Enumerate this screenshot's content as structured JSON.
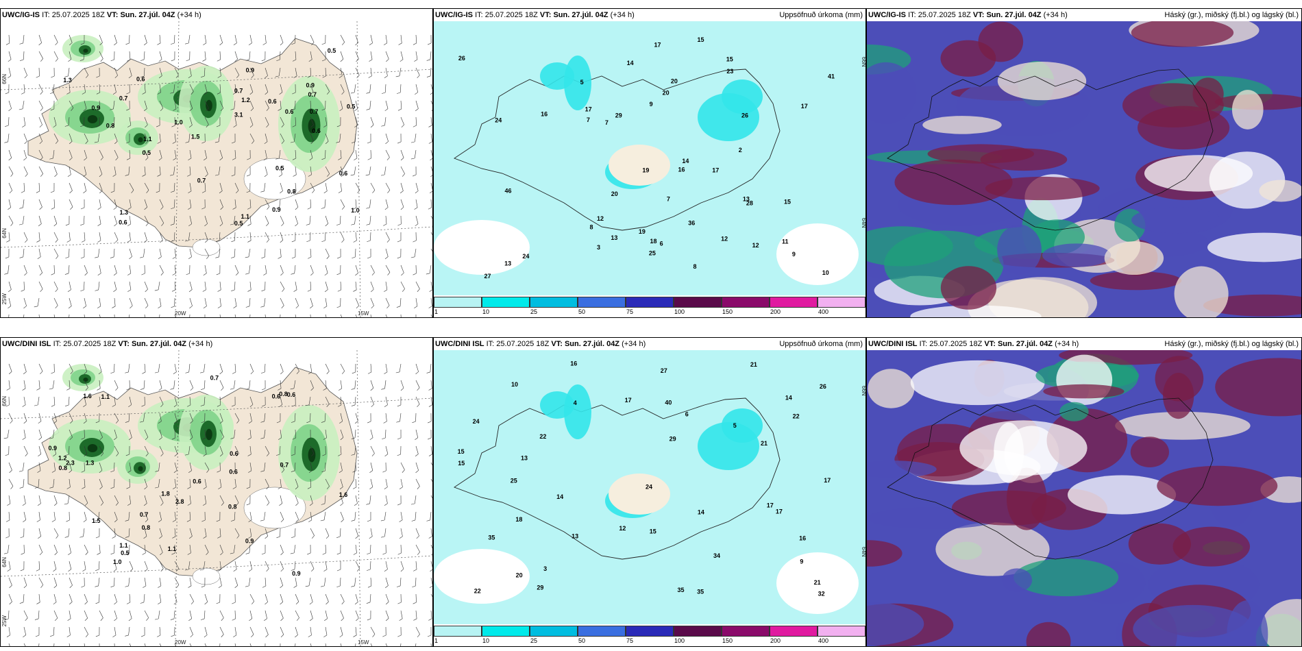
{
  "colors": {
    "land": "#f2e6d6",
    "ice": "#ffffff",
    "sea": "#ffffff",
    "precip_bg": "#b9f5f5",
    "green_light": "#c9f0c0",
    "green_mid": "#7fd38a",
    "green_dark": "#1d6b2a",
    "green_darkest": "#0b3a12",
    "cloud_high": "#7a1e45",
    "cloud_mid": "#4c4eb8",
    "cloud_low": "#1fa07a"
  },
  "panels": [
    {
      "model": "UWC/IG-IS",
      "init_label": "IT:",
      "init_time": "25.07.2025 18Z",
      "valid_label": "VT:",
      "valid_time": "Sun. 27.júl. 04Z",
      "lead": "(+34 h)",
      "right_title": "",
      "axis": {
        "lat1": "66N",
        "lat2": "64N",
        "lat3": "25W",
        "lon1": "20W",
        "lon2": "15W"
      },
      "values": [
        "1.0",
        "0.6",
        "0.5",
        "0.7",
        "0.6",
        "0.9",
        "0.8",
        "1.2",
        "0.7",
        "0.5",
        "0.9",
        "0.6",
        "1.1",
        "0.5",
        "0.6",
        "1.3",
        "1.0",
        "0.7",
        "0.6",
        "0.5",
        "0.7",
        "1.3",
        "3.1",
        "1.5",
        "1.1",
        "0.7",
        "0.6",
        "0.5",
        "0.8",
        "0.9",
        "0.9"
      ]
    },
    {
      "model": "UWC/IG-IS",
      "init_label": "IT:",
      "init_time": "25.07.2025 18Z",
      "valid_label": "VT:",
      "valid_time": "Sun. 27.júl. 04Z",
      "lead": "(+34 h)",
      "right_title": "Uppsöfnuð úrkoma (mm)",
      "axis": {
        "lat1": "66N",
        "lat2": "64N"
      },
      "values": [
        "13",
        "15",
        "14",
        "7",
        "14",
        "15",
        "11",
        "15",
        "12",
        "8",
        "10",
        "7",
        "13",
        "17",
        "12",
        "17",
        "13",
        "46",
        "19",
        "41",
        "26",
        "24",
        "25",
        "17",
        "28",
        "23",
        "29",
        "20",
        "17",
        "36",
        "9",
        "20",
        "20",
        "27",
        "16",
        "8",
        "18",
        "26",
        "24",
        "19",
        "16",
        "12",
        "5",
        "3",
        "2",
        "7",
        "9",
        "6"
      ]
    },
    {
      "model": "UWC/IG-IS",
      "init_label": "IT:",
      "init_time": "25.07.2025 18Z",
      "valid_label": "VT:",
      "valid_time": "Sun. 27.júl. 04Z",
      "lead": "(+34 h)",
      "right_title": "Háský (gr.), miðský (fj.bl.) og lágský (bl.)"
    },
    {
      "model": "UWC/DINI ISL",
      "init_label": "IT:",
      "init_time": "25.07.2025 18Z",
      "valid_label": "VT:",
      "valid_time": "Sun. 27.júl. 04Z",
      "lead": "(+34 h)",
      "right_title": "",
      "axis": {
        "lat1": "66N",
        "lat2": "64N",
        "lat3": "25W",
        "lon1": "20W",
        "lon2": "15W"
      },
      "values": [
        "0.7",
        "0.5",
        "1.2",
        "0.6",
        "0.8",
        "1.6",
        "1.3",
        "0.6",
        "0.7",
        "0.8",
        "1.1",
        "0.6",
        "0.6",
        "1.0",
        "0.9",
        "0.7",
        "0.8",
        "0.9",
        "0.9",
        "1.5",
        "0.8",
        "1.8",
        "0.6",
        "2.3",
        "1.1",
        "1.6",
        "2.8",
        "1.1"
      ]
    },
    {
      "model": "UWC/DINI ISL",
      "init_label": "IT:",
      "init_time": "25.07.2025 18Z",
      "valid_label": "VT:",
      "valid_time": "Sun. 27.júl. 04Z",
      "lead": "(+34 h)",
      "right_title": "Uppsöfnuð úrkoma (mm)",
      "axis": {
        "lat1": "66N",
        "lat2": "64N"
      },
      "values": [
        "16",
        "14",
        "22",
        "17",
        "21",
        "13",
        "35",
        "24",
        "14",
        "15",
        "16",
        "17",
        "21",
        "40",
        "20",
        "18",
        "29",
        "21",
        "22",
        "34",
        "35",
        "26",
        "29",
        "32",
        "25",
        "27",
        "13",
        "15",
        "17",
        "14",
        "22",
        "17",
        "35",
        "24",
        "12",
        "15",
        "9",
        "10",
        "6",
        "5",
        "4",
        "3"
      ]
    },
    {
      "model": "UWC/DINI ISL",
      "init_label": "IT:",
      "init_time": "25.07.2025 18Z",
      "valid_label": "VT:",
      "valid_time": "Sun. 27.júl. 04Z",
      "lead": "(+34 h)",
      "right_title": "Háský (gr.), miðský (fj.bl.) og lágský (bl.)"
    }
  ],
  "legend": {
    "labels": [
      "1",
      "10",
      "25",
      "50",
      "75",
      "100",
      "150",
      "200",
      "400"
    ],
    "colors": [
      "#b7f3f3",
      "#00eaea",
      "#00bde0",
      "#3a6ee0",
      "#2a2ab8",
      "#5a0a4a",
      "#8a0a6a",
      "#e01aa0",
      "#f2b0f0"
    ]
  }
}
